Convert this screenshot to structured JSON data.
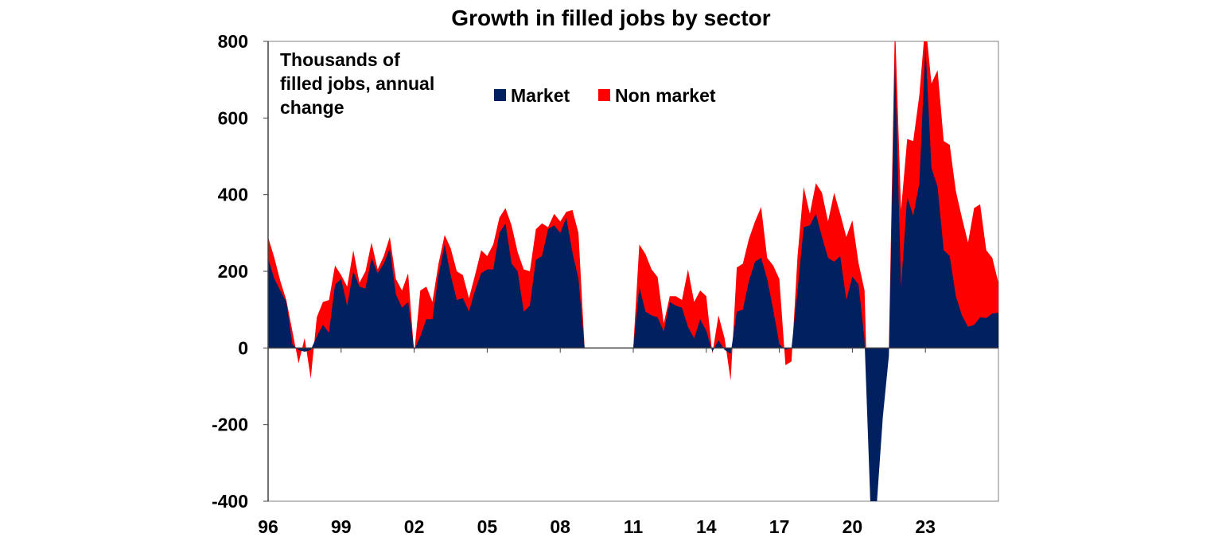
{
  "chart_data": {
    "type": "area",
    "stacked": true,
    "title": "Growth in filled jobs by sector",
    "annotation": [
      "Thousands of",
      "filled jobs, annual",
      "change"
    ],
    "xlabel": "",
    "ylabel": "",
    "ylim": [
      -400,
      800
    ],
    "yticks": [
      800,
      600,
      400,
      200,
      0,
      -200,
      -400
    ],
    "xlim": [
      1996,
      2026
    ],
    "xticks": [
      {
        "value": 1996,
        "label": "96"
      },
      {
        "value": 1999,
        "label": "99"
      },
      {
        "value": 2002,
        "label": "02"
      },
      {
        "value": 2005,
        "label": "05"
      },
      {
        "value": 2008,
        "label": "08"
      },
      {
        "value": 2011,
        "label": "11"
      },
      {
        "value": 2014,
        "label": "14"
      },
      {
        "value": 2017,
        "label": "17"
      },
      {
        "value": 2020,
        "label": "20"
      },
      {
        "value": 2023,
        "label": "23"
      }
    ],
    "grid": false,
    "legend_placement": "top-center",
    "x": [
      1996,
      1996.25,
      1996.5,
      1996.75,
      1997,
      1997.25,
      1997.5,
      1997.75,
      1998,
      1998.25,
      1998.5,
      1998.75,
      1999,
      1999.25,
      1999.5,
      1999.75,
      2000,
      2000.25,
      2000.5,
      2000.75,
      2001,
      2001.25,
      2001.5,
      2001.75,
      2002,
      2002.25,
      2002.5,
      2002.75,
      2003,
      2003.25,
      2003.5,
      2003.75,
      2004,
      2004.25,
      2004.5,
      2004.75,
      2005,
      2005.25,
      2005.5,
      2005.75,
      2006,
      2006.25,
      2006.5,
      2006.75,
      2007,
      2007.25,
      2007.5,
      2007.75,
      2008,
      2008.25,
      2008.5,
      2008.75,
      2009,
      2009.25,
      2009.5,
      2009.75,
      2010,
      2010.25,
      2010.5,
      2010.75,
      2011,
      2011.25,
      2011.5,
      2011.75,
      2012,
      2012.25,
      2012.5,
      2012.75,
      2013,
      2013.25,
      2013.5,
      2013.75,
      2014,
      2014.25,
      2014.5,
      2014.75,
      2015,
      2015.25,
      2015.5,
      2015.75,
      2016,
      2016.25,
      2016.5,
      2016.75,
      2017,
      2017.25,
      2017.5,
      2017.75,
      2018,
      2018.25,
      2018.5,
      2018.75,
      2019,
      2019.25,
      2019.5,
      2019.75,
      2020,
      2020.25,
      2020.5,
      2020.75,
      2021,
      2021.25,
      2021.5,
      2021.75,
      2022,
      2022.25,
      2022.5,
      2022.75,
      2023,
      2023.25,
      2023.5,
      2023.75,
      2024,
      2024.25,
      2024.5,
      2024.75,
      2025,
      2025.25,
      2025.5,
      2025.75,
      2026
    ],
    "series": [
      {
        "name": "Market",
        "color": "#002060",
        "values": [
          234,
          182,
          150,
          120,
          9,
          -5,
          -10,
          -5,
          30,
          60,
          40,
          165,
          180,
          110,
          200,
          160,
          155,
          235,
          195,
          220,
          260,
          140,
          105,
          120,
          -5,
          30,
          75,
          75,
          190,
          270,
          190,
          125,
          130,
          95,
          150,
          195,
          205,
          205,
          300,
          325,
          220,
          200,
          95,
          110,
          230,
          240,
          310,
          320,
          300,
          340,
          250,
          180,
          0,
          0,
          0,
          0,
          0,
          0,
          0,
          0,
          0,
          160,
          95,
          85,
          80,
          43,
          120,
          110,
          105,
          55,
          25,
          75,
          45,
          -10,
          20,
          -5,
          -15,
          95,
          100,
          175,
          225,
          235,
          180,
          100,
          10,
          -5,
          0,
          150,
          315,
          320,
          350,
          290,
          235,
          225,
          240,
          125,
          186,
          166,
          20,
          -420,
          -410,
          -180,
          -20,
          750,
          160,
          395,
          345,
          430,
          790,
          470,
          420,
          255,
          240,
          135,
          85,
          55,
          60,
          80,
          78,
          90,
          92
        ]
      },
      {
        "name": "Non market",
        "color": "#FF0000",
        "values": [
          55,
          55,
          25,
          5,
          34,
          -35,
          36,
          -75,
          50,
          60,
          85,
          50,
          10,
          50,
          55,
          10,
          45,
          40,
          10,
          20,
          30,
          40,
          45,
          75,
          -10,
          120,
          85,
          45,
          30,
          25,
          70,
          75,
          60,
          35,
          40,
          60,
          35,
          65,
          40,
          40,
          100,
          50,
          110,
          90,
          80,
          85,
          5,
          30,
          30,
          15,
          110,
          120,
          0,
          0,
          0,
          0,
          0,
          0,
          0,
          0,
          0,
          110,
          150,
          120,
          105,
          21,
          15,
          25,
          20,
          150,
          95,
          75,
          90,
          -5,
          65,
          30,
          -70,
          115,
          120,
          110,
          105,
          133,
          55,
          115,
          170,
          -40,
          -35,
          90,
          105,
          30,
          80,
          115,
          95,
          180,
          110,
          165,
          147,
          56,
          130,
          0,
          10,
          50,
          20,
          100,
          200,
          150,
          195,
          230,
          60,
          220,
          305,
          285,
          290,
          275,
          255,
          220,
          305,
          295,
          177,
          145,
          78
        ]
      }
    ]
  }
}
